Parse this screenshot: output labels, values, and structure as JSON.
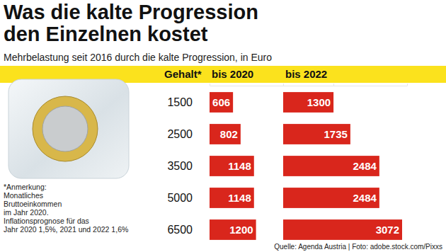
{
  "chart_data": {
    "type": "bar",
    "orientation": "horizontal",
    "title": [
      "Was die kalte Progression",
      "den Einzelnen kostet"
    ],
    "subtitle": "Mehrbelastung seit 2016 durch die kalte Progression, in Euro",
    "ylabel": "Gehalt*",
    "categories": [
      "1500",
      "2500",
      "3500",
      "5000",
      "6500"
    ],
    "series": [
      {
        "name": "bis 2020",
        "color": "#d9261c",
        "values": [
          606,
          802,
          1148,
          1148,
          1200
        ]
      },
      {
        "name": "bis 2022",
        "color": "#d9261c",
        "values": [
          1300,
          1735,
          2484,
          2484,
          3072
        ]
      }
    ],
    "xlim": [
      0,
      3200
    ],
    "xticks": [
      0,
      3200
    ],
    "tick_labels": "y",
    "data_labels": true,
    "grid": false,
    "note": [
      "*Anmerkung:",
      "Monatliches",
      "Bruttoeinkommen",
      "im Jahr 2020.",
      "Inflationsprognose für das",
      "Jahr 2020 1,5%, 2021 und 2022 1,6%"
    ],
    "source": "Quelle: Agenda Austria | Foto: adobe.stock.com/Pixxs"
  }
}
